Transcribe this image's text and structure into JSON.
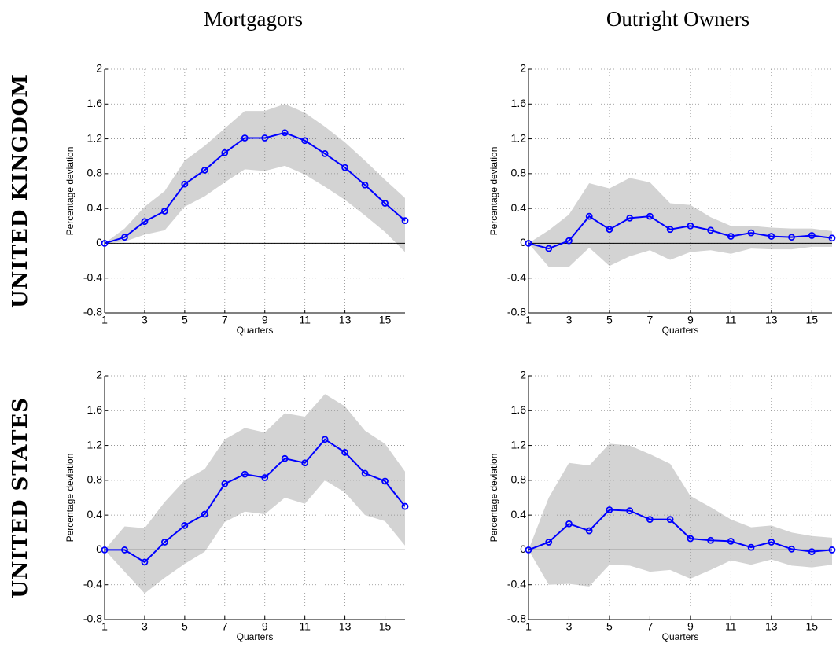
{
  "column_titles": [
    "Mortgagors",
    "Outright Owners"
  ],
  "row_titles": [
    "UNITED KINGDOM",
    "UNITED STATES"
  ],
  "chart_data": [
    {
      "type": "line",
      "xlabel": "Quarters",
      "ylabel": "Percentage deviation",
      "x": [
        1,
        2,
        3,
        4,
        5,
        6,
        7,
        8,
        9,
        10,
        11,
        12,
        13,
        14,
        15,
        16
      ],
      "xlim": [
        1,
        16
      ],
      "xticks": [
        1,
        3,
        5,
        7,
        9,
        11,
        13,
        15
      ],
      "ylim": [
        -0.8,
        2
      ],
      "yticks": [
        -0.8,
        -0.4,
        0,
        0.4,
        0.8,
        1.2,
        1.6,
        2
      ],
      "grid": true,
      "band_color": "#d3d3d3",
      "series": [
        {
          "color": "#0000ff",
          "values": [
            0,
            0.07,
            0.25,
            0.37,
            0.68,
            0.84,
            1.04,
            1.21,
            1.21,
            1.27,
            1.18,
            1.03,
            0.87,
            0.67,
            0.46,
            0.26
          ],
          "upper": [
            0,
            0.17,
            0.42,
            0.6,
            0.95,
            1.12,
            1.32,
            1.52,
            1.52,
            1.6,
            1.5,
            1.34,
            1.16,
            0.95,
            0.73,
            0.52
          ],
          "lower": [
            0,
            0.02,
            0.1,
            0.15,
            0.42,
            0.54,
            0.7,
            0.85,
            0.83,
            0.89,
            0.79,
            0.65,
            0.5,
            0.32,
            0.13,
            -0.1
          ]
        }
      ]
    },
    {
      "type": "line",
      "xlabel": "Quarters",
      "ylabel": "Percentage deviation",
      "x": [
        1,
        2,
        3,
        4,
        5,
        6,
        7,
        8,
        9,
        10,
        11,
        12,
        13,
        14,
        15,
        16
      ],
      "xlim": [
        1,
        16
      ],
      "xticks": [
        1,
        3,
        5,
        7,
        9,
        11,
        13,
        15
      ],
      "ylim": [
        -0.8,
        2
      ],
      "yticks": [
        -0.8,
        -0.4,
        0,
        0.4,
        0.8,
        1.2,
        1.6,
        2
      ],
      "grid": true,
      "band_color": "#d3d3d3",
      "series": [
        {
          "color": "#0000ff",
          "values": [
            0,
            -0.06,
            0.03,
            0.31,
            0.16,
            0.29,
            0.31,
            0.16,
            0.2,
            0.15,
            0.08,
            0.12,
            0.08,
            0.07,
            0.09,
            0.06
          ],
          "upper": [
            0,
            0.15,
            0.33,
            0.69,
            0.63,
            0.75,
            0.7,
            0.46,
            0.44,
            0.3,
            0.2,
            0.2,
            0.18,
            0.17,
            0.17,
            0.14
          ],
          "lower": [
            0,
            -0.27,
            -0.27,
            -0.05,
            -0.26,
            -0.15,
            -0.08,
            -0.19,
            -0.1,
            -0.08,
            -0.12,
            -0.06,
            -0.07,
            -0.07,
            -0.04,
            -0.04
          ]
        }
      ]
    },
    {
      "type": "line",
      "xlabel": "Quarters",
      "ylabel": "Percentage deviation",
      "x": [
        1,
        2,
        3,
        4,
        5,
        6,
        7,
        8,
        9,
        10,
        11,
        12,
        13,
        14,
        15,
        16
      ],
      "xlim": [
        1,
        16
      ],
      "xticks": [
        1,
        3,
        5,
        7,
        9,
        11,
        13,
        15
      ],
      "ylim": [
        -0.8,
        2
      ],
      "yticks": [
        -0.8,
        -0.4,
        0,
        0.4,
        0.8,
        1.2,
        1.6,
        2
      ],
      "grid": true,
      "band_color": "#d3d3d3",
      "series": [
        {
          "color": "#0000ff",
          "values": [
            0,
            0,
            -0.14,
            0.09,
            0.28,
            0.41,
            0.76,
            0.87,
            0.83,
            1.05,
            1.0,
            1.27,
            1.12,
            0.88,
            0.79,
            0.5
          ],
          "upper": [
            0,
            0.27,
            0.25,
            0.55,
            0.8,
            0.93,
            1.27,
            1.4,
            1.35,
            1.57,
            1.53,
            1.79,
            1.65,
            1.37,
            1.22,
            0.9
          ],
          "lower": [
            0,
            -0.25,
            -0.5,
            -0.32,
            -0.16,
            -0.02,
            0.32,
            0.44,
            0.41,
            0.6,
            0.53,
            0.8,
            0.66,
            0.4,
            0.33,
            0.05
          ]
        }
      ]
    },
    {
      "type": "line",
      "xlabel": "Quarters",
      "ylabel": "Percentage deviation",
      "x": [
        1,
        2,
        3,
        4,
        5,
        6,
        7,
        8,
        9,
        10,
        11,
        12,
        13,
        14,
        15,
        16
      ],
      "xlim": [
        1,
        16
      ],
      "xticks": [
        1,
        3,
        5,
        7,
        9,
        11,
        13,
        15
      ],
      "ylim": [
        -0.8,
        2
      ],
      "yticks": [
        -0.8,
        -0.4,
        0,
        0.4,
        0.8,
        1.2,
        1.6,
        2
      ],
      "grid": true,
      "band_color": "#d3d3d3",
      "series": [
        {
          "color": "#0000ff",
          "values": [
            0,
            0.09,
            0.3,
            0.22,
            0.46,
            0.45,
            0.35,
            0.35,
            0.13,
            0.11,
            0.1,
            0.03,
            0.09,
            0.01,
            -0.02,
            0
          ],
          "upper": [
            0,
            0.6,
            1.0,
            0.97,
            1.22,
            1.2,
            1.1,
            0.99,
            0.62,
            0.49,
            0.35,
            0.26,
            0.28,
            0.2,
            0.16,
            0.14
          ],
          "lower": [
            0,
            -0.4,
            -0.39,
            -0.42,
            -0.17,
            -0.18,
            -0.25,
            -0.23,
            -0.33,
            -0.23,
            -0.12,
            -0.17,
            -0.11,
            -0.18,
            -0.2,
            -0.17
          ]
        }
      ]
    }
  ]
}
